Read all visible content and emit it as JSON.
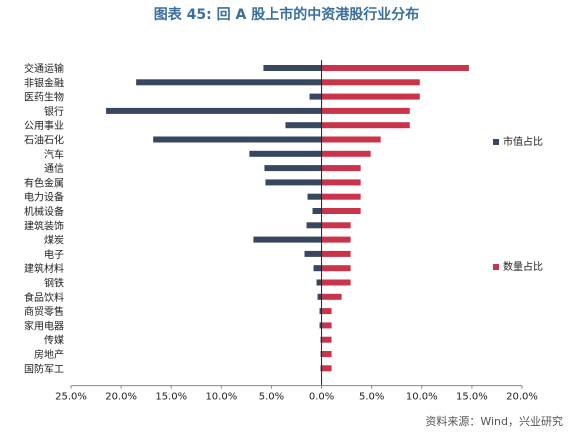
{
  "page": {
    "title": "图表 45: 回 A 股上市的中资港股行业分布",
    "source": "资料来源：Wind，兴业研究"
  },
  "colors": {
    "series_1": "#36475f",
    "series_2": "#c9344a"
  },
  "chart_data": {
    "type": "bar",
    "orientation": "horizontal",
    "categories": [
      "交通运输",
      "非银金融",
      "医药生物",
      "银行",
      "公用事业",
      "石油石化",
      "汽车",
      "通信",
      "有色金属",
      "电力设备",
      "机械设备",
      "建筑装饰",
      "煤炭",
      "电子",
      "建筑材料",
      "钢铁",
      "食品饮料",
      "商贸零售",
      "家用电器",
      "传媒",
      "房地产",
      "国防军工"
    ],
    "series": [
      {
        "name": "市值占比",
        "values": [
          -5.8,
          -18.5,
          -1.2,
          -21.5,
          -3.6,
          -16.8,
          -7.2,
          -5.7,
          -5.6,
          -1.4,
          -0.9,
          -1.5,
          -6.8,
          -1.7,
          -0.8,
          -0.5,
          -0.4,
          -0.2,
          -0.2,
          -0.1,
          -0.1,
          -0.1
        ]
      },
      {
        "name": "数量占比",
        "values": [
          14.7,
          9.8,
          9.8,
          8.8,
          8.8,
          5.9,
          4.9,
          3.9,
          3.9,
          3.9,
          3.9,
          2.9,
          2.9,
          2.9,
          2.9,
          2.9,
          2.0,
          1.0,
          1.0,
          1.0,
          1.0,
          1.0
        ]
      }
    ],
    "x_ticks": [
      "25.0%",
      "20.0%",
      "15.0%",
      "10.0%",
      "5.0%",
      "0.0%",
      "5.0%",
      "10.0%",
      "15.0%",
      "20.0%"
    ],
    "xlim": [
      -25,
      20
    ],
    "grid": false,
    "legend_position": "right"
  }
}
